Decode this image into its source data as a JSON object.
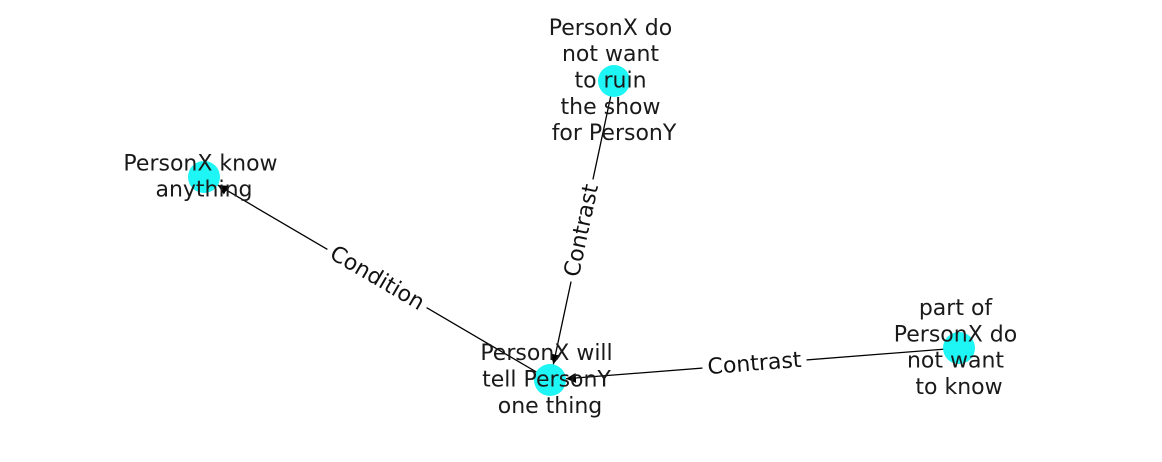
{
  "graph": {
    "node_color": "#1ef5f5",
    "nodes": [
      {
        "id": "n_know",
        "lines": [
          "PersonX know",
          "anything"
        ]
      },
      {
        "id": "n_ruin",
        "lines": [
          "PersonX do",
          "not want",
          "to ruin",
          "the show",
          "for PersonY"
        ]
      },
      {
        "id": "n_tell",
        "lines": [
          "PersonX will",
          "tell PersonY",
          "one thing"
        ]
      },
      {
        "id": "n_part",
        "lines": [
          "part of",
          "PersonX do",
          "not want",
          "to know"
        ]
      }
    ],
    "edges": [
      {
        "from": "n_tell",
        "to": "n_know",
        "label": "Condition"
      },
      {
        "from": "n_ruin",
        "to": "n_tell",
        "label": "Contrast"
      },
      {
        "from": "n_part",
        "to": "n_tell",
        "label": "Contrast"
      }
    ]
  }
}
